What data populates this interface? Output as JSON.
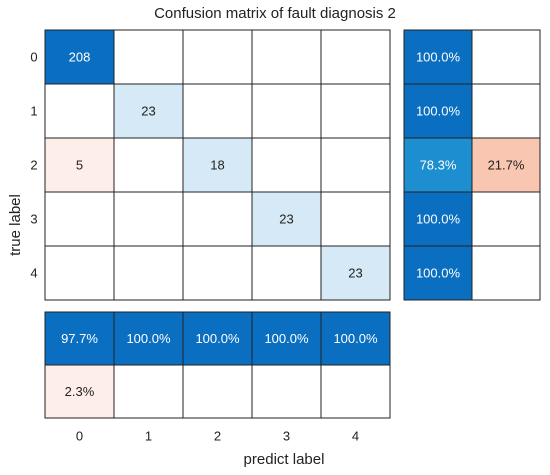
{
  "chart_data": {
    "type": "heatmap",
    "title": "Confusion matrix of fault diagnosis 2",
    "xlabel": "predict label",
    "ylabel": "true label",
    "class_labels": [
      "0",
      "1",
      "2",
      "3",
      "4"
    ],
    "matrix": [
      [
        208,
        null,
        null,
        null,
        null
      ],
      [
        null,
        23,
        null,
        null,
        null
      ],
      [
        5,
        null,
        18,
        null,
        null
      ],
      [
        null,
        null,
        null,
        23,
        null
      ],
      [
        null,
        null,
        null,
        null,
        23
      ]
    ],
    "row_summary": [
      [
        "100.0%",
        ""
      ],
      [
        "100.0%",
        ""
      ],
      [
        "78.3%",
        "21.7%"
      ],
      [
        "100.0%",
        ""
      ],
      [
        "100.0%",
        ""
      ]
    ],
    "row_summary_values": [
      [
        100.0,
        0
      ],
      [
        100.0,
        0
      ],
      [
        78.3,
        21.7
      ],
      [
        100.0,
        0
      ],
      [
        100.0,
        0
      ]
    ],
    "column_summary": [
      [
        "97.7%",
        "100.0%",
        "100.0%",
        "100.0%",
        "100.0%"
      ],
      [
        "2.3%",
        "",
        "",
        "",
        ""
      ]
    ],
    "column_summary_values": [
      [
        97.7,
        100.0,
        100.0,
        100.0,
        100.0
      ],
      [
        2.3,
        0,
        0,
        0,
        0
      ]
    ],
    "colors": {
      "correct_strong": "#0b6fc1",
      "correct_mid": "#1d8fd0",
      "correct_light": "#d6e9f6",
      "error_strong": "#f9c6b2",
      "error_light": "#fdeeea",
      "grid": "#222222",
      "text_dark": "#222222",
      "text_light": "#ffffff"
    }
  }
}
